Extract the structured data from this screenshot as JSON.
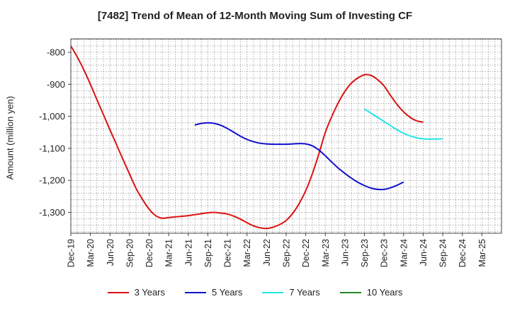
{
  "chart_data": {
    "type": "line",
    "title": "[7482]  Trend of Mean of 12-Month Moving Sum of Investing CF",
    "xlabel": "",
    "ylabel": "Amount (million yen)",
    "ylim": [
      -1365,
      -758
    ],
    "yticks": [
      -800,
      -900,
      -1000,
      -1100,
      -1200,
      -1300
    ],
    "ytick_labels": [
      "-800",
      "-900",
      "-1,000",
      "-1,100",
      "-1,200",
      "-1,300"
    ],
    "x_range_months": [
      0,
      66
    ],
    "xticks": [
      {
        "m": 0,
        "label": "Dec-19"
      },
      {
        "m": 3,
        "label": "Mar-20"
      },
      {
        "m": 6,
        "label": "Jun-20"
      },
      {
        "m": 9,
        "label": "Sep-20"
      },
      {
        "m": 12,
        "label": "Dec-20"
      },
      {
        "m": 15,
        "label": "Mar-21"
      },
      {
        "m": 18,
        "label": "Jun-21"
      },
      {
        "m": 21,
        "label": "Sep-21"
      },
      {
        "m": 24,
        "label": "Dec-21"
      },
      {
        "m": 27,
        "label": "Mar-22"
      },
      {
        "m": 30,
        "label": "Jun-22"
      },
      {
        "m": 33,
        "label": "Sep-22"
      },
      {
        "m": 36,
        "label": "Dec-22"
      },
      {
        "m": 39,
        "label": "Mar-23"
      },
      {
        "m": 42,
        "label": "Jun-23"
      },
      {
        "m": 45,
        "label": "Sep-23"
      },
      {
        "m": 48,
        "label": "Dec-23"
      },
      {
        "m": 51,
        "label": "Mar-24"
      },
      {
        "m": 54,
        "label": "Jun-24"
      },
      {
        "m": 57,
        "label": "Sep-24"
      },
      {
        "m": 60,
        "label": "Dec-24"
      },
      {
        "m": 63,
        "label": "Mar-25"
      }
    ],
    "grid": true,
    "legend_position": "bottom",
    "series": [
      {
        "name": "3 Years",
        "color": "#dd1111",
        "points": [
          [
            0,
            -780
          ],
          [
            1,
            -815
          ],
          [
            2,
            -855
          ],
          [
            3,
            -900
          ],
          [
            4,
            -948
          ],
          [
            5,
            -995
          ],
          [
            6,
            -1042
          ],
          [
            7,
            -1088
          ],
          [
            8,
            -1135
          ],
          [
            9,
            -1180
          ],
          [
            10,
            -1225
          ],
          [
            11,
            -1260
          ],
          [
            12,
            -1290
          ],
          [
            13,
            -1310
          ],
          [
            14,
            -1318
          ],
          [
            15,
            -1316
          ],
          [
            16,
            -1314
          ],
          [
            17,
            -1312
          ],
          [
            18,
            -1310
          ],
          [
            19,
            -1307
          ],
          [
            20,
            -1304
          ],
          [
            21,
            -1301
          ],
          [
            22,
            -1300
          ],
          [
            23,
            -1302
          ],
          [
            24,
            -1305
          ],
          [
            25,
            -1312
          ],
          [
            26,
            -1321
          ],
          [
            27,
            -1332
          ],
          [
            28,
            -1342
          ],
          [
            29,
            -1348
          ],
          [
            30,
            -1350
          ],
          [
            31,
            -1346
          ],
          [
            32,
            -1338
          ],
          [
            33,
            -1325
          ],
          [
            34,
            -1303
          ],
          [
            35,
            -1272
          ],
          [
            36,
            -1232
          ],
          [
            37,
            -1180
          ],
          [
            38,
            -1118
          ],
          [
            39,
            -1050
          ],
          [
            40,
            -1000
          ],
          [
            41,
            -957
          ],
          [
            42,
            -922
          ],
          [
            43,
            -896
          ],
          [
            44,
            -880
          ],
          [
            45,
            -870
          ],
          [
            46,
            -872
          ],
          [
            47,
            -885
          ],
          [
            48,
            -905
          ],
          [
            49,
            -935
          ],
          [
            50,
            -963
          ],
          [
            51,
            -986
          ],
          [
            52,
            -1003
          ],
          [
            53,
            -1014
          ],
          [
            54,
            -1018
          ]
        ]
      },
      {
        "name": "5 Years",
        "color": "#1111cc",
        "points": [
          [
            19,
            -1027
          ],
          [
            20,
            -1022
          ],
          [
            21,
            -1020
          ],
          [
            22,
            -1022
          ],
          [
            23,
            -1028
          ],
          [
            24,
            -1038
          ],
          [
            25,
            -1050
          ],
          [
            26,
            -1062
          ],
          [
            27,
            -1072
          ],
          [
            28,
            -1079
          ],
          [
            29,
            -1084
          ],
          [
            30,
            -1086
          ],
          [
            31,
            -1087
          ],
          [
            32,
            -1087
          ],
          [
            33,
            -1087
          ],
          [
            34,
            -1086
          ],
          [
            35,
            -1085
          ],
          [
            36,
            -1086
          ],
          [
            37,
            -1092
          ],
          [
            38,
            -1105
          ],
          [
            39,
            -1123
          ],
          [
            40,
            -1143
          ],
          [
            41,
            -1162
          ],
          [
            42,
            -1178
          ],
          [
            43,
            -1193
          ],
          [
            44,
            -1206
          ],
          [
            45,
            -1216
          ],
          [
            46,
            -1224
          ],
          [
            47,
            -1228
          ],
          [
            48,
            -1228
          ],
          [
            49,
            -1223
          ],
          [
            50,
            -1215
          ],
          [
            51,
            -1205
          ]
        ]
      },
      {
        "name": "7 Years",
        "color": "#22e6e6",
        "points": [
          [
            45,
            -977
          ],
          [
            46,
            -990
          ],
          [
            47,
            -1003
          ],
          [
            48,
            -1016
          ],
          [
            49,
            -1029
          ],
          [
            50,
            -1042
          ],
          [
            51,
            -1053
          ],
          [
            52,
            -1061
          ],
          [
            53,
            -1067
          ],
          [
            54,
            -1070
          ],
          [
            55,
            -1071
          ],
          [
            57,
            -1070
          ]
        ]
      },
      {
        "name": "10 Years",
        "color": "#228822",
        "points": []
      }
    ]
  }
}
